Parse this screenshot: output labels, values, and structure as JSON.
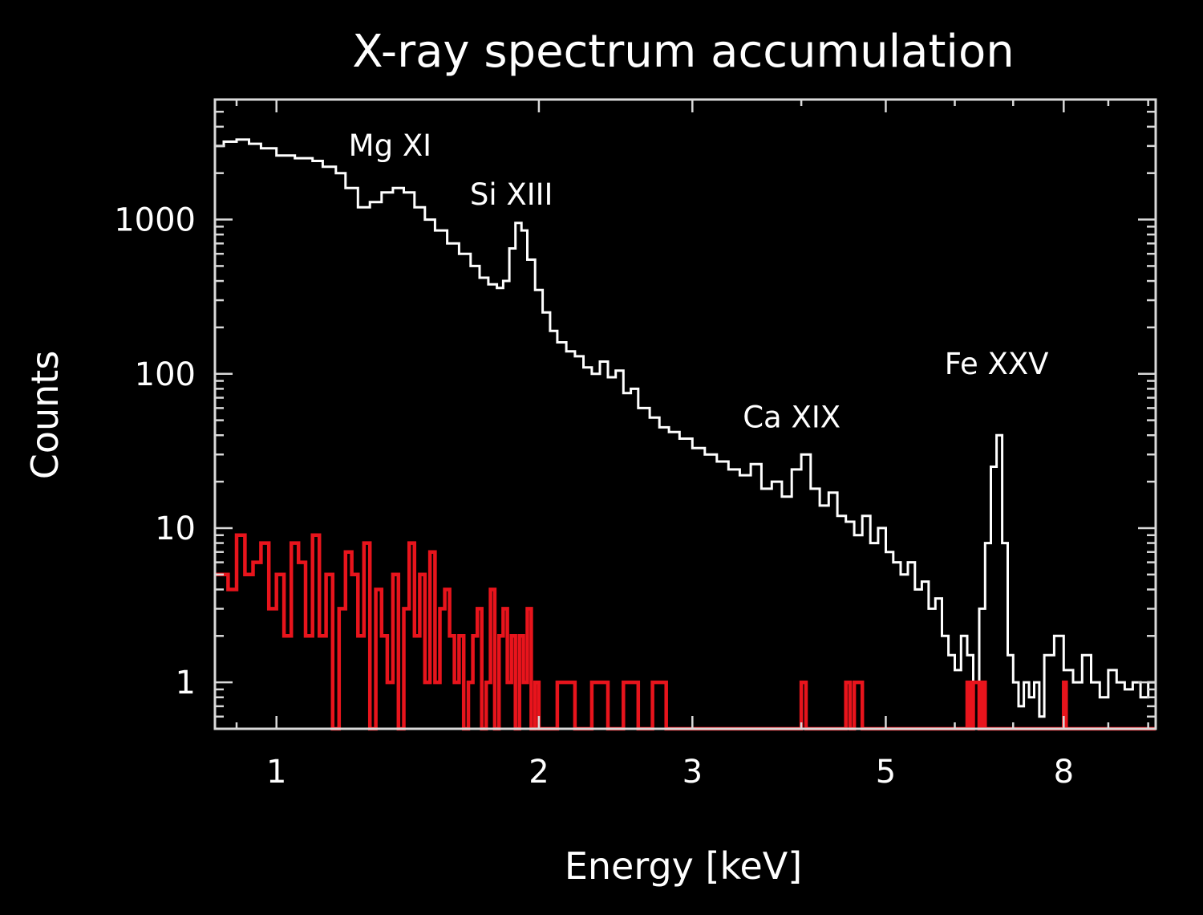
{
  "chart_data": {
    "type": "line",
    "title": "X-ray spectrum accumulation",
    "xlabel": "Energy [keV]",
    "ylabel": "Counts",
    "xscale": "log",
    "yscale": "log",
    "xlim": [
      0.85,
      10.2
    ],
    "ylim": [
      0.5,
      6000
    ],
    "xticks": [
      {
        "value": 1,
        "label": "1"
      },
      {
        "value": 2,
        "label": "2"
      },
      {
        "value": 3,
        "label": "3"
      },
      {
        "value": 5,
        "label": "5"
      },
      {
        "value": 8,
        "label": "8"
      }
    ],
    "yticks": [
      {
        "value": 1,
        "label": "1"
      },
      {
        "value": 10,
        "label": "10"
      },
      {
        "value": 100,
        "label": "100"
      },
      {
        "value": 1000,
        "label": "1000"
      }
    ],
    "grid": false,
    "annotations": [
      {
        "text": "Mg XI",
        "x": 1.35,
        "y": 2600
      },
      {
        "text": "Si XIII",
        "x": 1.86,
        "y": 1250
      },
      {
        "text": "Ca XIX",
        "x": 3.9,
        "y": 45
      },
      {
        "text": "Fe XXV",
        "x": 6.7,
        "y": 100
      }
    ],
    "series": [
      {
        "color": "#ffffff",
        "step": true,
        "x": [
          0.85,
          0.87,
          0.9,
          0.93,
          0.96,
          1.0,
          1.05,
          1.1,
          1.13,
          1.17,
          1.2,
          1.24,
          1.28,
          1.32,
          1.36,
          1.4,
          1.44,
          1.48,
          1.52,
          1.57,
          1.62,
          1.67,
          1.71,
          1.75,
          1.79,
          1.82,
          1.85,
          1.88,
          1.91,
          1.94,
          1.98,
          2.02,
          2.06,
          2.1,
          2.15,
          2.2,
          2.25,
          2.3,
          2.35,
          2.4,
          2.45,
          2.5,
          2.55,
          2.6,
          2.68,
          2.75,
          2.82,
          2.9,
          3.0,
          3.1,
          3.2,
          3.3,
          3.4,
          3.5,
          3.6,
          3.7,
          3.8,
          3.9,
          4.0,
          4.1,
          4.2,
          4.3,
          4.4,
          4.5,
          4.6,
          4.7,
          4.8,
          4.9,
          5.0,
          5.1,
          5.2,
          5.3,
          5.4,
          5.5,
          5.6,
          5.7,
          5.8,
          5.9,
          6.0,
          6.1,
          6.2,
          6.3,
          6.4,
          6.5,
          6.6,
          6.7,
          6.8,
          6.9,
          7.0,
          7.1,
          7.2,
          7.3,
          7.4,
          7.5,
          7.6,
          7.8,
          8.0,
          8.2,
          8.4,
          8.6,
          8.8,
          9.0,
          9.2,
          9.4,
          9.6,
          9.8,
          10.0
        ],
        "y": [
          3000,
          3200,
          3300,
          3100,
          2900,
          2600,
          2500,
          2400,
          2200,
          2000,
          1600,
          1200,
          1300,
          1500,
          1600,
          1500,
          1200,
          1000,
          850,
          700,
          600,
          500,
          420,
          380,
          360,
          400,
          650,
          950,
          850,
          550,
          350,
          250,
          190,
          160,
          140,
          130,
          110,
          100,
          120,
          95,
          105,
          75,
          80,
          60,
          52,
          45,
          42,
          38,
          33,
          30,
          27,
          24,
          22,
          26,
          18,
          20,
          16,
          24,
          30,
          18,
          14,
          17,
          12,
          11,
          9,
          12,
          8,
          10,
          7,
          6,
          5,
          6,
          4,
          4.5,
          3,
          3.5,
          2,
          1.5,
          1.2,
          2,
          1.5,
          1,
          3,
          8,
          25,
          40,
          8,
          1.5,
          1,
          0.7,
          1,
          0.8,
          1,
          0.6,
          1.5,
          2,
          1.2,
          1,
          1.5,
          1,
          0.8,
          1.2,
          1,
          0.9,
          1,
          0.8,
          1
        ]
      },
      {
        "color": "#e8141c",
        "step": true,
        "x": [
          0.85,
          0.88,
          0.9,
          0.92,
          0.94,
          0.96,
          0.98,
          1.0,
          1.02,
          1.04,
          1.06,
          1.08,
          1.1,
          1.12,
          1.14,
          1.16,
          1.18,
          1.2,
          1.22,
          1.24,
          1.26,
          1.28,
          1.3,
          1.32,
          1.34,
          1.36,
          1.38,
          1.4,
          1.42,
          1.44,
          1.46,
          1.48,
          1.5,
          1.52,
          1.54,
          1.56,
          1.58,
          1.6,
          1.62,
          1.64,
          1.66,
          1.68,
          1.7,
          1.72,
          1.74,
          1.76,
          1.78,
          1.8,
          1.82,
          1.84,
          1.86,
          1.88,
          1.9,
          1.92,
          1.94,
          1.96,
          1.98,
          2.0,
          2.1,
          2.2,
          2.3,
          2.4,
          2.5,
          2.6,
          2.7,
          2.8,
          3.0,
          3.5,
          4.0,
          4.05,
          4.1,
          4.5,
          4.55,
          4.6,
          4.7,
          4.75,
          5.0,
          6.0,
          6.2,
          6.25,
          6.3,
          6.4,
          6.45,
          6.5,
          7.5,
          8.0,
          8.05,
          8.1,
          10.0
        ],
        "y": [
          5,
          4,
          9,
          5,
          6,
          8,
          3,
          5,
          2,
          8,
          6,
          2,
          9,
          2,
          5,
          0.5,
          3,
          7,
          5,
          2,
          8,
          0.5,
          4,
          2,
          1,
          5,
          0.5,
          3,
          8,
          2,
          5,
          1,
          7,
          1,
          3,
          4,
          2,
          1,
          2,
          0.5,
          1,
          2,
          3,
          0.5,
          1,
          4,
          0.5,
          2,
          3,
          1,
          2,
          0.5,
          2,
          1,
          3,
          0.5,
          1,
          0.5,
          1,
          0.5,
          1,
          0.5,
          1,
          0.5,
          1,
          0.5,
          0.5,
          0.5,
          1,
          0.5,
          0.5,
          1,
          0.5,
          1,
          0.5,
          0.5,
          0.5,
          0.5,
          1,
          0.5,
          1,
          0.5,
          1,
          0.5,
          0.5,
          1,
          0.5,
          0.5,
          0.5
        ]
      }
    ]
  }
}
